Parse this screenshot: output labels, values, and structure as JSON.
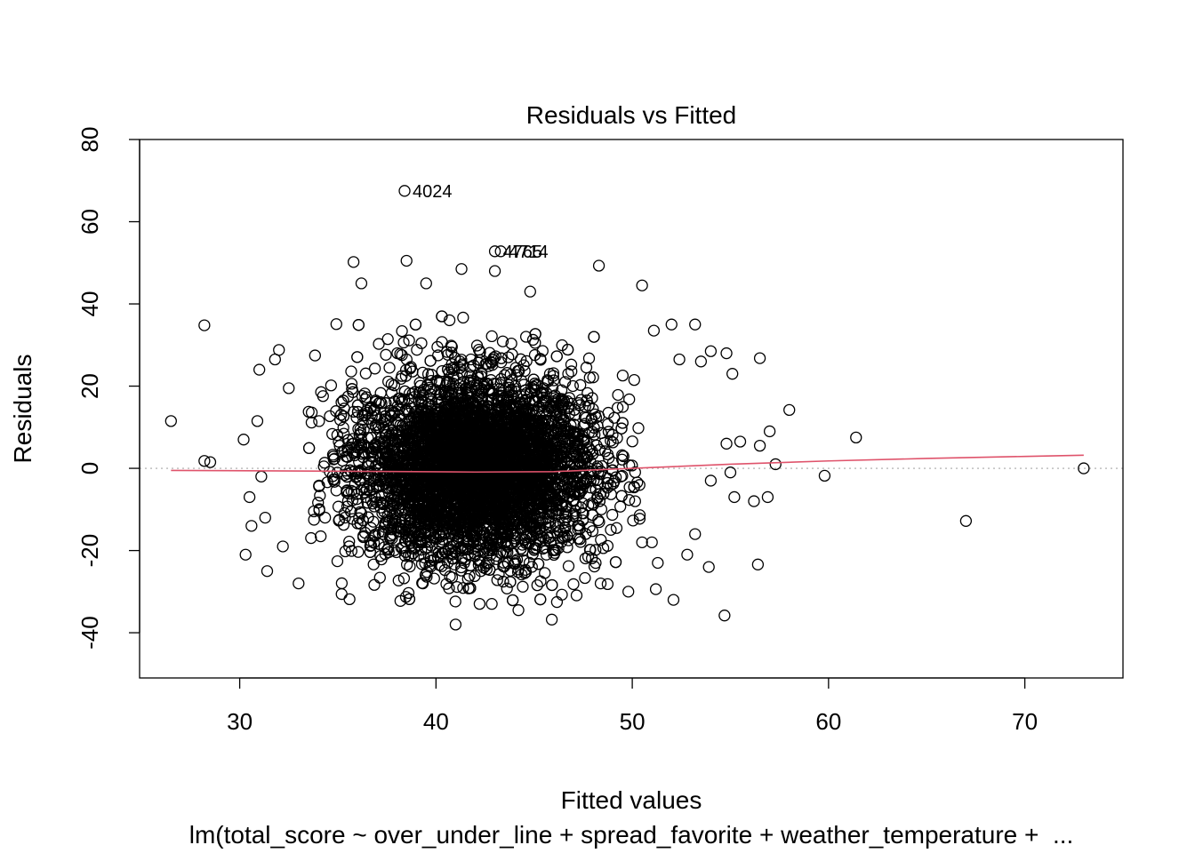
{
  "chart_data": {
    "type": "scatter",
    "title": "Residuals vs Fitted",
    "xlabel": "Fitted values",
    "ylabel": "Residuals",
    "subtitle": "lm(total_score ~ over_under_line + spread_favorite + weather_temperature +  ...",
    "xlim": [
      24.9,
      75
    ],
    "ylim": [
      -51,
      80
    ],
    "x_ticks": [
      "30",
      "40",
      "50",
      "60",
      "70"
    ],
    "y_ticks": [
      "-40",
      "-20",
      "0",
      "20",
      "40",
      "60",
      "80"
    ],
    "grid": false,
    "reference_line": {
      "y": 0,
      "style": "dotted",
      "color": "#bebebe"
    },
    "smooth_line": {
      "color": "#df536b",
      "points": [
        [
          26.5,
          -0.5
        ],
        [
          35,
          -0.7
        ],
        [
          42,
          -0.9
        ],
        [
          46,
          -0.8
        ],
        [
          50,
          0.0
        ],
        [
          55,
          1.0
        ],
        [
          60,
          1.8
        ],
        [
          65,
          2.4
        ],
        [
          70,
          2.9
        ],
        [
          73,
          3.2
        ]
      ]
    },
    "point_style": "open-circle",
    "dense_cloud": {
      "description_center_x": 42.0,
      "center_y": 0,
      "count": 5200
    },
    "outlier_points": [
      [
        26.5,
        11.5
      ],
      [
        28.2,
        34.8
      ],
      [
        28.2,
        1.8
      ],
      [
        28.5,
        1.5
      ],
      [
        30.2,
        7
      ],
      [
        30.3,
        -21
      ],
      [
        30.5,
        -7
      ],
      [
        30.6,
        -14
      ],
      [
        30.9,
        11.5
      ],
      [
        31.0,
        24
      ],
      [
        31.1,
        -2
      ],
      [
        31.3,
        -12
      ],
      [
        31.4,
        -25
      ],
      [
        31.8,
        26.5
      ],
      [
        32.0,
        28.8
      ],
      [
        32.2,
        -19
      ],
      [
        32.5,
        19.5
      ],
      [
        33.0,
        -28
      ],
      [
        35.8,
        50.2
      ],
      [
        38.5,
        50.5
      ],
      [
        39.5,
        45.0
      ],
      [
        41.3,
        48.5
      ],
      [
        43.0,
        48.0
      ],
      [
        44.8,
        43.0
      ],
      [
        48.3,
        49.3
      ],
      [
        50.5,
        44.5
      ],
      [
        36.2,
        45.0
      ],
      [
        50.1,
        21.5
      ],
      [
        51.1,
        33.5
      ],
      [
        52.0,
        35.0
      ],
      [
        53.2,
        35.0
      ],
      [
        54.0,
        28.5
      ],
      [
        54.8,
        28.0
      ],
      [
        55.1,
        23.0
      ],
      [
        52.4,
        26.5
      ],
      [
        53.5,
        26.0
      ],
      [
        56.5,
        26.8
      ],
      [
        58.0,
        14.2
      ],
      [
        57.0,
        9.0
      ],
      [
        56.5,
        5.5
      ],
      [
        57.3,
        1.0
      ],
      [
        55.5,
        6.5
      ],
      [
        54.8,
        6.0
      ],
      [
        54.0,
        -3
      ],
      [
        55.0,
        -1
      ],
      [
        55.2,
        -7
      ],
      [
        56.2,
        -8
      ],
      [
        56.9,
        -7
      ],
      [
        56.4,
        -23.4
      ],
      [
        54.7,
        -35.8
      ],
      [
        53.9,
        -24
      ],
      [
        53.2,
        -16
      ],
      [
        52.8,
        -21
      ],
      [
        51.3,
        -23
      ],
      [
        51.2,
        -29.4
      ],
      [
        52.1,
        -32
      ],
      [
        49.8,
        -30
      ],
      [
        50.5,
        -18
      ],
      [
        51.0,
        -18
      ],
      [
        59.8,
        -1.8
      ],
      [
        61.4,
        7.5
      ],
      [
        67.0,
        -12.8
      ],
      [
        73.0,
        0.0
      ],
      [
        41.0,
        -38.0
      ],
      [
        45.9,
        -36.8
      ],
      [
        44.2,
        -34.5
      ]
    ],
    "labeled_points": [
      {
        "label": "4024",
        "x": 38.4,
        "y": 67.5
      },
      {
        "label": "4765",
        "x": 43.0,
        "y": 52.8
      },
      {
        "label": "4714",
        "x": 43.3,
        "y": 52.8
      }
    ]
  }
}
